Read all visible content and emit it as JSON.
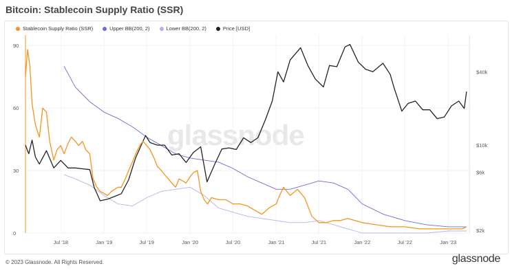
{
  "title": "Bitcoin: Stablecoin Supply Ratio (SSR)",
  "watermark": "glassnode",
  "footer": {
    "copyright": "© 2023 Glassnode. All Rights Reserved.",
    "brand": "glassnode"
  },
  "legend": [
    {
      "label": "Stablecoin Supply Ratio (SSR)",
      "color": "#f7931a"
    },
    {
      "label": "Upper BB(200, 2)",
      "color": "#6b6bdf"
    },
    {
      "label": "Lower BB(200, 2)",
      "color": "#b3b3f0"
    },
    {
      "label": "Price [USD]",
      "color": "#222222"
    }
  ],
  "chart_data": {
    "type": "line",
    "x_ticks": [
      "Jul '18",
      "Jan '19",
      "Jul '19",
      "Jan '20",
      "Jul '20",
      "Jan '21",
      "Jul '21",
      "Jan '22",
      "Jul '22",
      "Jan '23"
    ],
    "y_left_ticks": [
      "0",
      "30",
      "60",
      "90"
    ],
    "y_right_ticks": [
      "$2k",
      "$6k",
      "$10k",
      "$40k"
    ],
    "y_left_range": [
      0,
      95
    ],
    "y_right_scale": "log",
    "x_range": [
      "2018-02",
      "2023-04"
    ],
    "grid": true,
    "legend_position": "top-left",
    "series": [
      {
        "name": "Stablecoin Supply Ratio (SSR)",
        "axis": "left",
        "color": "#f7931a",
        "x": [
          "2018-02-01",
          "2018-02-10",
          "2018-02-20",
          "2018-03-01",
          "2018-03-15",
          "2018-04-01",
          "2018-04-15",
          "2018-05-01",
          "2018-05-15",
          "2018-06-01",
          "2018-06-15",
          "2018-07-01",
          "2018-07-15",
          "2018-08-01",
          "2018-08-15",
          "2018-09-01",
          "2018-09-15",
          "2018-10-01",
          "2018-10-15",
          "2018-11-01",
          "2018-11-15",
          "2018-12-01",
          "2018-12-15",
          "2019-01-01",
          "2019-01-15",
          "2019-02-01",
          "2019-02-15",
          "2019-03-01",
          "2019-03-15",
          "2019-04-01",
          "2019-04-15",
          "2019-05-01",
          "2019-05-15",
          "2019-06-01",
          "2019-06-15",
          "2019-07-01",
          "2019-07-15",
          "2019-08-01",
          "2019-08-15",
          "2019-09-01",
          "2019-09-15",
          "2019-10-01",
          "2019-10-15",
          "2019-11-01",
          "2019-11-15",
          "2019-12-01",
          "2019-12-15",
          "2020-01-01",
          "2020-01-15",
          "2020-02-01",
          "2020-02-15",
          "2020-03-01",
          "2020-03-15",
          "2020-04-01",
          "2020-05-01",
          "2020-06-01",
          "2020-07-01",
          "2020-08-01",
          "2020-09-01",
          "2020-10-01",
          "2020-11-01",
          "2020-12-01",
          "2021-01-01",
          "2021-01-15",
          "2021-02-01",
          "2021-03-01",
          "2021-04-01",
          "2021-05-01",
          "2021-06-01",
          "2021-07-01",
          "2021-08-01",
          "2021-09-01",
          "2021-10-01",
          "2021-11-01",
          "2021-12-01",
          "2022-01-01",
          "2022-03-01",
          "2022-05-01",
          "2022-07-01",
          "2022-09-01",
          "2022-11-01",
          "2023-01-01",
          "2023-03-01",
          "2023-03-20"
        ],
        "y": [
          75,
          88,
          80,
          62,
          52,
          46,
          60,
          58,
          44,
          35,
          40,
          42,
          38,
          43,
          46,
          44,
          42,
          44,
          40,
          38,
          26,
          22,
          20,
          19,
          18,
          20,
          21,
          22,
          22,
          26,
          30,
          34,
          38,
          42,
          44,
          42,
          40,
          36,
          32,
          30,
          28,
          26,
          24,
          22,
          26,
          25,
          24,
          27,
          29,
          30,
          20,
          16,
          14,
          17,
          16,
          16,
          14,
          14,
          13,
          11,
          9,
          12,
          14,
          18,
          22,
          18,
          21,
          17,
          8,
          5,
          5,
          6,
          6,
          7,
          6,
          5,
          4,
          3,
          3,
          2,
          2,
          2,
          2,
          3
        ]
      },
      {
        "name": "Upper BB(200, 2)",
        "axis": "left",
        "color": "#6b6bdf",
        "x": [
          "2018-07-15",
          "2018-09-01",
          "2018-11-01",
          "2019-01-01",
          "2019-03-01",
          "2019-05-01",
          "2019-07-01",
          "2019-09-01",
          "2019-11-01",
          "2020-01-01",
          "2020-03-01",
          "2020-05-01",
          "2020-07-01",
          "2020-09-01",
          "2020-11-01",
          "2021-01-01",
          "2021-03-01",
          "2021-05-01",
          "2021-07-01",
          "2021-09-01",
          "2021-11-01",
          "2022-01-01",
          "2022-04-01",
          "2022-07-01",
          "2022-10-01",
          "2023-01-01",
          "2023-03-20"
        ],
        "y": [
          80,
          70,
          63,
          58,
          55,
          51,
          46,
          42,
          38,
          36,
          35,
          34,
          31,
          27,
          24,
          21,
          21,
          23,
          25,
          24,
          21,
          14,
          9,
          6,
          4,
          3,
          3
        ]
      },
      {
        "name": "Lower BB(200, 2)",
        "axis": "left",
        "color": "#b3b3f0",
        "x": [
          "2018-07-15",
          "2018-09-01",
          "2018-11-01",
          "2019-01-01",
          "2019-03-01",
          "2019-05-01",
          "2019-07-01",
          "2019-09-01",
          "2019-11-01",
          "2020-01-01",
          "2020-03-01",
          "2020-05-01",
          "2020-07-01",
          "2020-09-01",
          "2020-11-01",
          "2021-01-01",
          "2021-03-01",
          "2021-05-01",
          "2021-07-01",
          "2021-09-01",
          "2021-11-01",
          "2022-01-01",
          "2022-04-01",
          "2022-07-01",
          "2022-10-01",
          "2023-01-01",
          "2023-03-20"
        ],
        "y": [
          28,
          26,
          23,
          18,
          14,
          13,
          17,
          20,
          21,
          22,
          18,
          12,
          10,
          8,
          7,
          6,
          5,
          5,
          6,
          4,
          2,
          0,
          0,
          0,
          0,
          1,
          1
        ]
      },
      {
        "name": "Price [USD]",
        "axis": "right",
        "color": "#222222",
        "x": [
          "2018-02-01",
          "2018-02-15",
          "2018-03-01",
          "2018-03-15",
          "2018-04-01",
          "2018-05-01",
          "2018-06-01",
          "2018-07-01",
          "2018-08-01",
          "2018-09-01",
          "2018-10-01",
          "2018-11-01",
          "2018-11-20",
          "2018-12-15",
          "2019-01-15",
          "2019-02-15",
          "2019-03-15",
          "2019-04-15",
          "2019-05-15",
          "2019-06-26",
          "2019-07-15",
          "2019-08-15",
          "2019-09-15",
          "2019-10-15",
          "2019-11-15",
          "2019-12-15",
          "2020-01-15",
          "2020-02-15",
          "2020-03-13",
          "2020-04-15",
          "2020-05-15",
          "2020-06-15",
          "2020-07-15",
          "2020-08-15",
          "2020-09-15",
          "2020-10-15",
          "2020-11-15",
          "2020-12-15",
          "2021-01-08",
          "2021-02-01",
          "2021-03-01",
          "2021-04-14",
          "2021-05-15",
          "2021-06-15",
          "2021-07-20",
          "2021-08-15",
          "2021-09-15",
          "2021-10-20",
          "2021-11-10",
          "2021-12-15",
          "2022-01-15",
          "2022-02-15",
          "2022-03-30",
          "2022-04-30",
          "2022-05-15",
          "2022-06-18",
          "2022-07-15",
          "2022-08-15",
          "2022-09-15",
          "2022-10-15",
          "2022-11-15",
          "2022-12-15",
          "2023-01-15",
          "2023-02-15",
          "2023-03-10",
          "2023-03-20"
        ],
        "y": [
          10000,
          8500,
          11000,
          8000,
          7000,
          9000,
          6500,
          7500,
          6500,
          6500,
          6400,
          6300,
          4500,
          3500,
          3600,
          3800,
          4000,
          5200,
          7900,
          12000,
          10500,
          10000,
          10000,
          8300,
          8500,
          7200,
          8700,
          9700,
          5000,
          7000,
          9300,
          9500,
          9200,
          11500,
          10500,
          11500,
          16000,
          23000,
          40000,
          33000,
          50000,
          63000,
          45000,
          35000,
          30000,
          45000,
          44000,
          64000,
          67000,
          48000,
          42000,
          40000,
          47000,
          38000,
          30000,
          19000,
          22000,
          23000,
          19500,
          19500,
          16500,
          17000,
          21000,
          23000,
          20000,
          27500
        ]
      }
    ]
  }
}
